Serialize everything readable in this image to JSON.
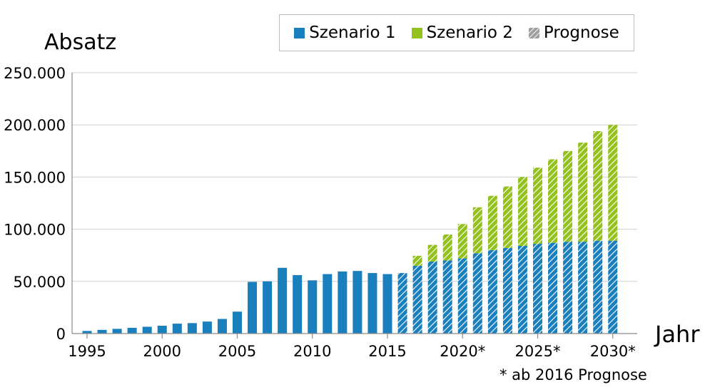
{
  "chart_data": {
    "type": "bar",
    "stacked": true,
    "ylabel": "Absatz",
    "xlabel": "Jahr",
    "ylim": [
      0,
      250000
    ],
    "y_ticks": [
      "0",
      "50.000",
      "100.000",
      "150.000",
      "200.000",
      "250.000"
    ],
    "y_tick_values": [
      0,
      50000,
      100000,
      150000,
      200000,
      250000
    ],
    "x_tick_years": [
      1995,
      2000,
      2005,
      2010,
      2015,
      2020,
      2025,
      2030
    ],
    "x_tick_labels": [
      "1995",
      "2000",
      "2005",
      "2010",
      "2015",
      "2020*",
      "2025*",
      "2030*"
    ],
    "categories": [
      1995,
      1996,
      1997,
      1998,
      1999,
      2000,
      2001,
      2002,
      2003,
      2004,
      2005,
      2006,
      2007,
      2008,
      2009,
      2010,
      2011,
      2012,
      2013,
      2014,
      2015,
      2016,
      2017,
      2018,
      2019,
      2020,
      2021,
      2022,
      2023,
      2024,
      2025,
      2026,
      2027,
      2028,
      2029,
      2030
    ],
    "forecast_from": 2016,
    "grid": "horizontal",
    "legend_position": "top-right",
    "series": [
      {
        "name": "Szenario 1",
        "color": "#1a7fbd",
        "values": [
          2500,
          3500,
          4500,
          5500,
          6500,
          7500,
          9500,
          10000,
          11500,
          14000,
          21000,
          49500,
          50000,
          63000,
          56000,
          51000,
          57000,
          59500,
          60000,
          58000,
          57000,
          58000,
          65000,
          69000,
          70000,
          72000,
          77000,
          80000,
          82000,
          84000,
          86000,
          87000,
          88000,
          88000,
          89000,
          89000
        ]
      },
      {
        "name": "Szenario 2",
        "color": "#95c11f",
        "values": [
          0,
          0,
          0,
          0,
          0,
          0,
          0,
          0,
          0,
          0,
          0,
          0,
          0,
          0,
          0,
          0,
          0,
          0,
          0,
          0,
          0,
          0,
          9500,
          16000,
          25000,
          33000,
          44000,
          52000,
          59000,
          66000,
          73000,
          80000,
          87000,
          95000,
          105000,
          111000
        ]
      }
    ],
    "legend": [
      {
        "label": "Szenario 1",
        "color": "#1a7fbd",
        "pattern": "solid"
      },
      {
        "label": "Szenario 2",
        "color": "#95c11f",
        "pattern": "solid"
      },
      {
        "label": "Prognose",
        "color": "#9e9e9e",
        "pattern": "hatched"
      }
    ],
    "footnote": "* ab 2016 Prognose"
  }
}
